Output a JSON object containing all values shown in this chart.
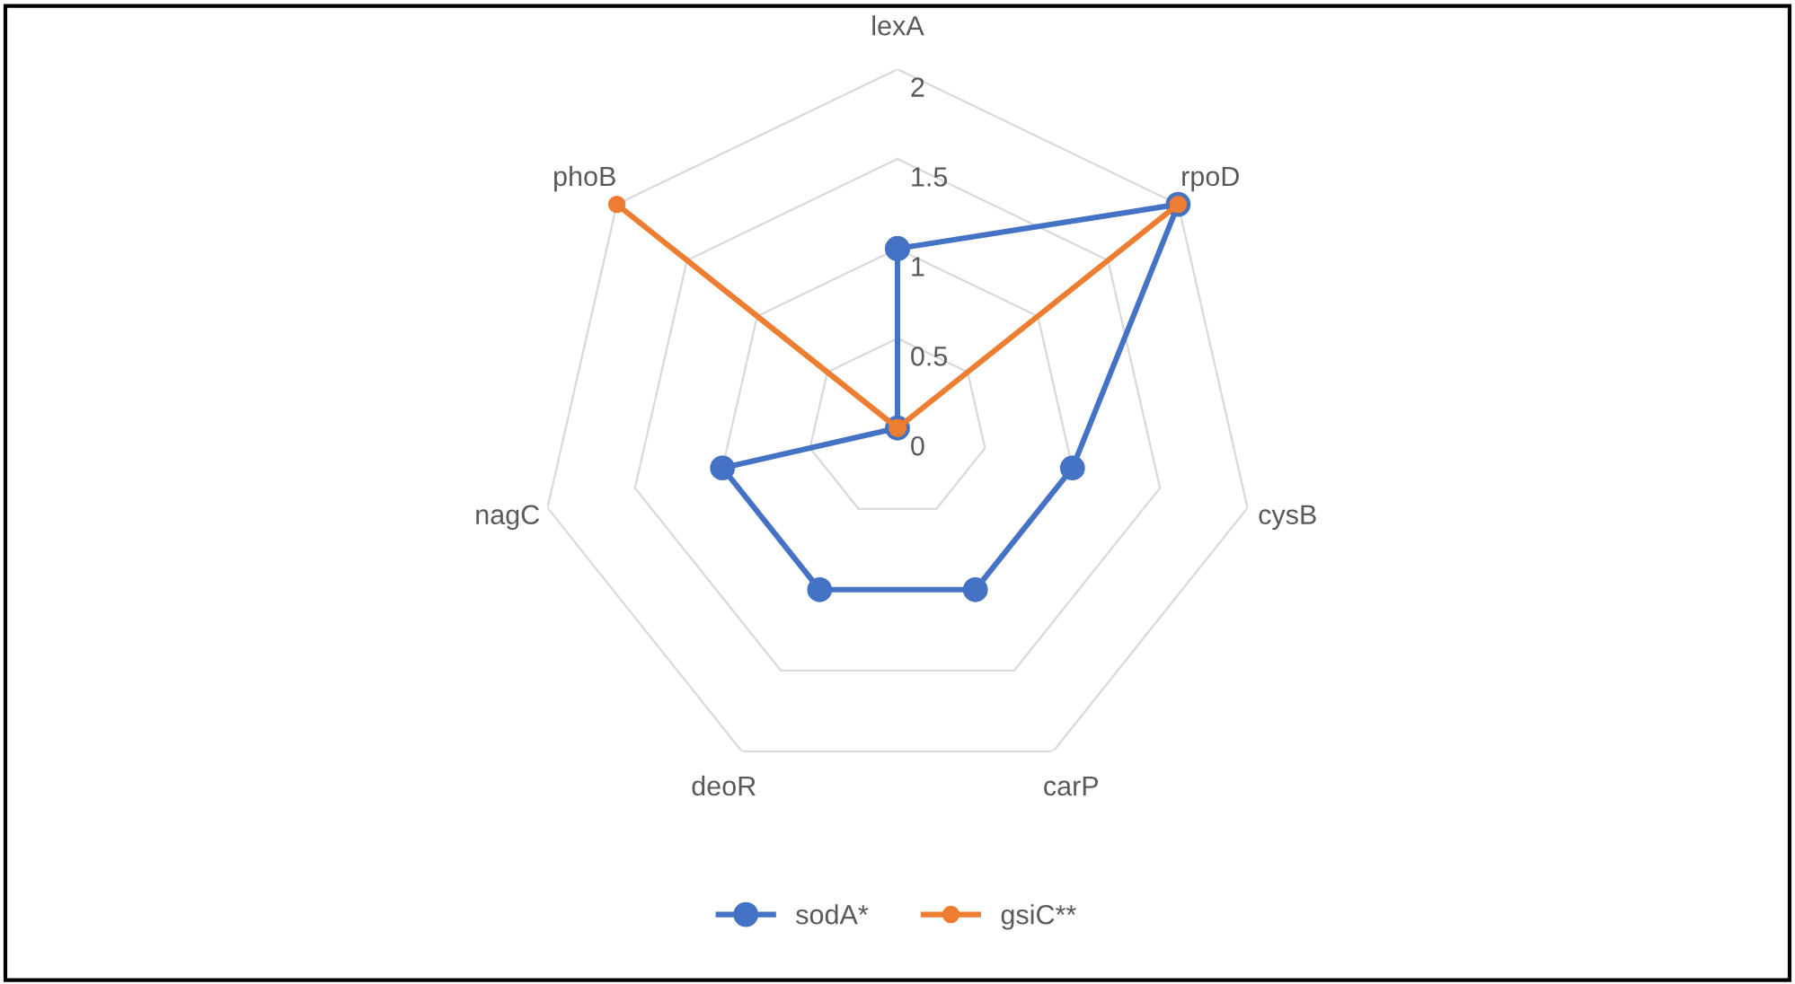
{
  "chart_data": {
    "type": "radar",
    "categories": [
      "lexA",
      "rpoD",
      "cysB",
      "carP",
      "deoR",
      "nagC",
      "phoB"
    ],
    "series": [
      {
        "name": "sodA*",
        "color": "#4472c4",
        "values": [
          1,
          2,
          1,
          1,
          1,
          1,
          0
        ]
      },
      {
        "name": "gsiC**",
        "color": "#ed7d31",
        "values": [
          0,
          2,
          0,
          0,
          0,
          0,
          2
        ]
      }
    ],
    "ylim": [
      0,
      2
    ],
    "yticks": [
      0,
      0.5,
      1,
      1.5,
      2
    ],
    "grid": true,
    "legend": "bottom",
    "marker": "circle",
    "line_style": "solid"
  }
}
